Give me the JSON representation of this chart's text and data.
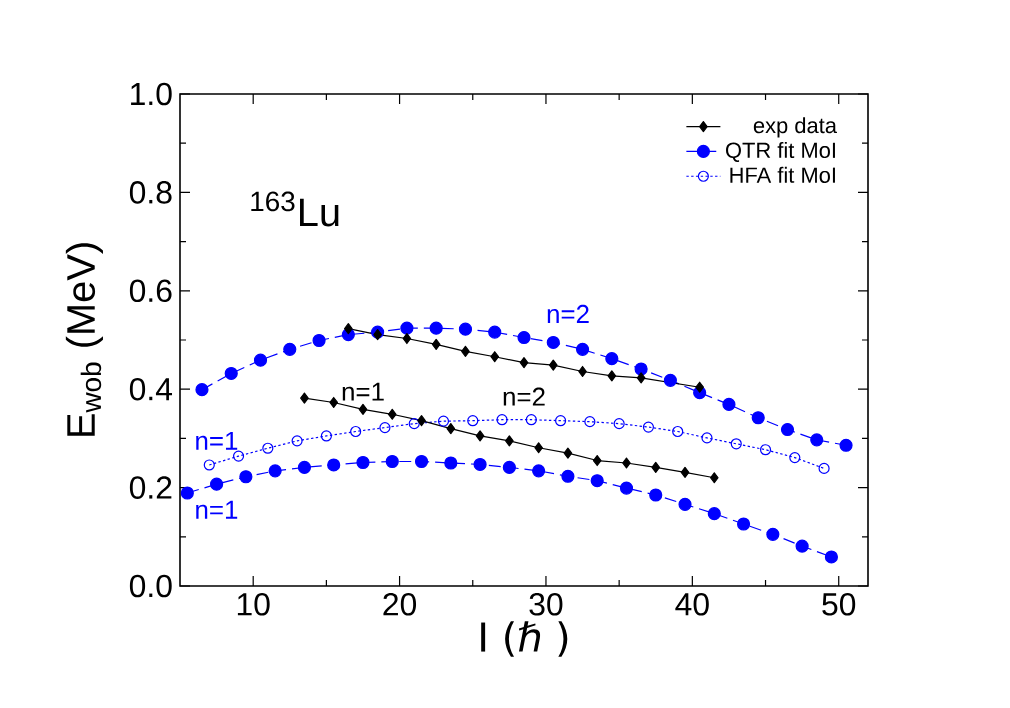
{
  "chart_data": {
    "type": "line",
    "xlabel": "I (ℏ )",
    "ylabel": "E$_{wob}$  (MeV)",
    "xlim": [
      5,
      52
    ],
    "ylim": [
      0,
      1.0
    ],
    "xticks": [
      10,
      20,
      30,
      40,
      50
    ],
    "yticks": [
      {
        "value": 0,
        "label": "0.0"
      },
      {
        "value": 0.2,
        "label": "0.2"
      },
      {
        "value": 0.4,
        "label": "0.4"
      },
      {
        "value": 0.6,
        "label": "0.6"
      },
      {
        "value": 0.8,
        "label": "0.8"
      },
      {
        "value": 1.0,
        "label": "1.0"
      }
    ],
    "legend": "top right",
    "grid": false,
    "series": [
      {
        "name": "exp data",
        "color": "#000000",
        "marker": "diamond",
        "line_style": "solid",
        "x": [
          16.5,
          18.5,
          20.5,
          22.5,
          24.5,
          26.5,
          28.5,
          30.5,
          32.5,
          34.5,
          36.5,
          40.5
        ],
        "values": [
          0.523,
          0.511,
          0.503,
          0.491,
          0.477,
          0.466,
          0.454,
          0.449,
          0.436,
          0.427,
          0.423,
          0.404
        ]
      },
      {
        "color": "#000000",
        "marker": "diamond",
        "line_style": "solid",
        "x": [
          13.5,
          15.5,
          17.5,
          19.5,
          21.5,
          23.5,
          25.5,
          27.5,
          29.5,
          31.5,
          33.5,
          35.5,
          37.5,
          39.5,
          41.5
        ],
        "values": [
          0.382,
          0.373,
          0.359,
          0.349,
          0.336,
          0.32,
          0.305,
          0.295,
          0.281,
          0.27,
          0.255,
          0.25,
          0.241,
          0.231,
          0.22
        ]
      },
      {
        "name": "QTR fit MoI",
        "color": "#0000ff",
        "marker": "circle",
        "line_style": "dashed",
        "x": [
          6.5,
          8.5,
          10.5,
          12.5,
          14.5,
          16.5,
          18.5,
          20.5,
          22.5,
          24.5,
          26.5,
          28.5,
          30.5,
          32.5,
          34.5,
          36.5,
          38.5,
          40.5,
          42.5,
          44.5,
          46.5,
          48.5,
          50.5
        ],
        "values": [
          0.399,
          0.432,
          0.459,
          0.481,
          0.499,
          0.511,
          0.516,
          0.524,
          0.524,
          0.522,
          0.516,
          0.505,
          0.495,
          0.481,
          0.462,
          0.441,
          0.418,
          0.393,
          0.369,
          0.342,
          0.318,
          0.297,
          0.286
        ]
      },
      {
        "color": "#0000ff",
        "marker": "circle",
        "line_style": "dashed",
        "x": [
          5.5,
          7.5,
          9.5,
          11.5,
          13.5,
          15.5,
          17.5,
          19.5,
          21.5,
          23.5,
          25.5,
          27.5,
          29.5,
          31.5,
          33.5,
          35.5,
          37.5,
          39.5,
          41.5,
          43.5,
          45.5,
          47.5,
          49.5
        ],
        "values": [
          0.189,
          0.207,
          0.222,
          0.234,
          0.241,
          0.246,
          0.251,
          0.253,
          0.253,
          0.25,
          0.247,
          0.241,
          0.234,
          0.223,
          0.214,
          0.199,
          0.185,
          0.166,
          0.147,
          0.126,
          0.105,
          0.081,
          0.059
        ]
      },
      {
        "name": "HFA fit MoI",
        "color": "#0000ff",
        "marker": "circle",
        "line_style": "dotted",
        "x": [
          7,
          9,
          11,
          13,
          15,
          17,
          19,
          21,
          23,
          25,
          27,
          29,
          31,
          33,
          35,
          37,
          39,
          41,
          43,
          45,
          47,
          49
        ],
        "values": [
          0.246,
          0.264,
          0.28,
          0.295,
          0.305,
          0.314,
          0.322,
          0.33,
          0.335,
          0.336,
          0.338,
          0.338,
          0.336,
          0.334,
          0.33,
          0.323,
          0.314,
          0.301,
          0.289,
          0.277,
          0.261,
          0.239
        ]
      }
    ],
    "annotations": [
      "$^{163}$Lu",
      "n=2",
      "n=1",
      "n=2",
      "n=1",
      "n=1"
    ]
  }
}
